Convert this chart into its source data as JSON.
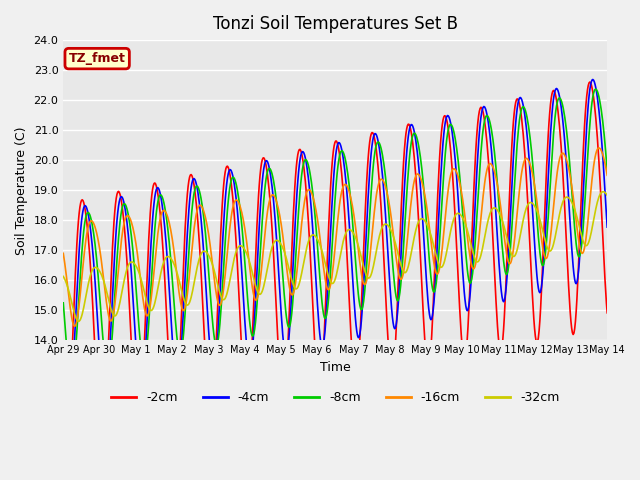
{
  "title": "Tonzi Soil Temperatures Set B",
  "xlabel": "Time",
  "ylabel": "Soil Temperature (C)",
  "ylim": [
    14.0,
    24.0
  ],
  "yticks": [
    14.0,
    15.0,
    16.0,
    17.0,
    18.0,
    19.0,
    20.0,
    21.0,
    22.0,
    23.0,
    24.0
  ],
  "xtick_labels": [
    "Apr 29",
    "Apr 30",
    "May 1",
    "May 2",
    "May 3",
    "May 4",
    "May 5",
    "May 6",
    "May 7",
    "May 8",
    "May 9",
    "May 10",
    "May 11",
    "May 12",
    "May 13",
    "May 14"
  ],
  "colors": {
    "-2cm": "#ff0000",
    "-4cm": "#0000ff",
    "-8cm": "#00cc00",
    "-16cm": "#ff8800",
    "-32cm": "#cccc00"
  },
  "legend_label": "TZ_fmet",
  "bg_color": "#e8e8e8",
  "grid_color": "#ffffff",
  "n_days": 15,
  "pts_per_day": 48
}
